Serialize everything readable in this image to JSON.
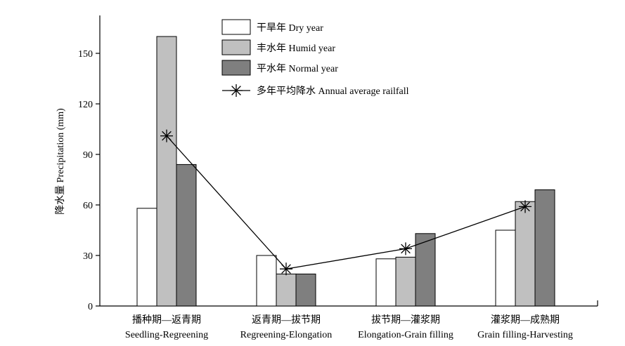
{
  "chart_data": {
    "type": "bar",
    "title": "",
    "ylabel": "降水量 Precipitation (mm)",
    "xlabel": "",
    "ylim": [
      0,
      170
    ],
    "yticks": [
      0,
      30,
      60,
      90,
      120,
      150
    ],
    "grid": false,
    "legend_position": "top",
    "categories": [
      {
        "zh": "播种期—返青期",
        "en": "Seedling-Regreening"
      },
      {
        "zh": "返青期—拔节期",
        "en": "Regreening-Elongation"
      },
      {
        "zh": "拔节期—灌浆期",
        "en": "Elongation-Grain filling"
      },
      {
        "zh": "灌浆期—成熟期",
        "en": "Grain filling-Harvesting"
      }
    ],
    "series": [
      {
        "name": "干旱年 Dry year",
        "values": [
          58,
          30,
          28,
          45
        ],
        "color": "#ffffff"
      },
      {
        "name": "丰水年 Humid year",
        "values": [
          160,
          19,
          29,
          62
        ],
        "color": "#c0c0c0"
      },
      {
        "name": "平水年 Normal year",
        "values": [
          84,
          19,
          43,
          69
        ],
        "color": "#7f7f7f"
      }
    ],
    "line_series": {
      "name": "多年平均降水 Annual average railfall",
      "values": [
        101,
        22,
        34,
        59
      ],
      "marker": "asterisk"
    }
  }
}
